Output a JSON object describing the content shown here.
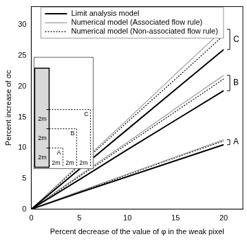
{
  "chart_data": {
    "type": "line",
    "x_label": "Percent decrease of the value of φ in the weak pixel",
    "y_label": "Percent increase of σc",
    "x": [
      0,
      5,
      10,
      15,
      20
    ],
    "xlim": [
      0,
      22
    ],
    "xticks": [
      0,
      5,
      10,
      15,
      20
    ],
    "ylim": [
      0,
      33
    ],
    "yticks": [
      0,
      5,
      10,
      15,
      20,
      25,
      30
    ],
    "grid": false,
    "legend": "upper left",
    "series": [
      {
        "name": "Limit analysis model",
        "group": "C",
        "color": "#000000",
        "line_style": "solid",
        "values": [
          0,
          6.5,
          13,
          19.5,
          26
        ]
      },
      {
        "name": "Numerical model (Associated flow rule)",
        "group": "C",
        "color": "#999999",
        "line_style": "solid",
        "values": [
          0,
          7.3,
          14.6,
          22,
          29.3
        ]
      },
      {
        "name": "Numerical model (Non-associated flow rule)",
        "group": "C",
        "color": "#000000",
        "line_style": "dotted",
        "values": [
          0,
          7.1,
          14.2,
          21.2,
          28.3
        ]
      },
      {
        "name": "Limit analysis model",
        "group": "B",
        "color": "#000000",
        "line_style": "solid",
        "values": [
          0,
          4.8,
          9.7,
          14.5,
          19.3
        ]
      },
      {
        "name": "Numerical model (Associated flow rule)",
        "group": "B",
        "color": "#999999",
        "line_style": "solid",
        "values": [
          0,
          5.5,
          10.9,
          16.4,
          21.8
        ]
      },
      {
        "name": "Numerical model (Non-associated flow rule)",
        "group": "B",
        "color": "#000000",
        "line_style": "dotted",
        "values": [
          0,
          5.3,
          10.6,
          15.9,
          21.2
        ]
      },
      {
        "name": "Limit analysis model",
        "group": "A",
        "color": "#000000",
        "line_style": "solid",
        "values": [
          0,
          2.7,
          5.3,
          7.9,
          10.5
        ]
      },
      {
        "name": "Numerical model (Associated flow rule)",
        "group": "A",
        "color": "#999999",
        "line_style": "solid",
        "values": [
          0,
          2.9,
          5.7,
          8.5,
          11.3
        ]
      },
      {
        "name": "Numerical model (Non-associated flow rule)",
        "group": "A",
        "color": "#000000",
        "line_style": "dotted",
        "values": [
          0,
          2.8,
          5.6,
          8.4,
          11.1
        ]
      }
    ]
  },
  "inset": {
    "regions": [
      "A",
      "B",
      "C"
    ],
    "vertical_labels": [
      "2m",
      "2m",
      "2m"
    ],
    "horizontal_labels": [
      "2m",
      "2m",
      "2m"
    ]
  }
}
